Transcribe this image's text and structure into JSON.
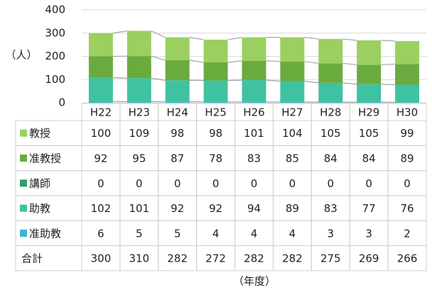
{
  "chart_data": {
    "type": "stacked_bar",
    "y_label": "（人）",
    "x_label": "（年度）",
    "categories": [
      "H22",
      "H23",
      "H24",
      "H25",
      "H26",
      "H27",
      "H28",
      "H29",
      "H30"
    ],
    "series": [
      {
        "name": "教授",
        "color": "#9bcf5f",
        "values": [
          100,
          109,
          98,
          98,
          101,
          104,
          105,
          105,
          99
        ]
      },
      {
        "name": "准教授",
        "color": "#6aab3e",
        "values": [
          92,
          95,
          87,
          78,
          83,
          85,
          84,
          84,
          89
        ]
      },
      {
        "name": "講師",
        "color": "#2f9e6c",
        "values": [
          0,
          0,
          0,
          0,
          0,
          0,
          0,
          0,
          0
        ]
      },
      {
        "name": "助教",
        "color": "#3fc2a2",
        "values": [
          102,
          101,
          92,
          92,
          94,
          89,
          83,
          77,
          76
        ]
      },
      {
        "name": "准助教",
        "color": "#3fb5c9",
        "values": [
          6,
          5,
          5,
          4,
          4,
          4,
          3,
          3,
          2
        ]
      }
    ],
    "totals": {
      "name": "合計",
      "values": [
        300,
        310,
        282,
        272,
        282,
        282,
        275,
        269,
        266
      ]
    },
    "ylim": [
      0,
      400
    ],
    "yticks": [
      0,
      100,
      200,
      300,
      400
    ],
    "grid": true
  }
}
